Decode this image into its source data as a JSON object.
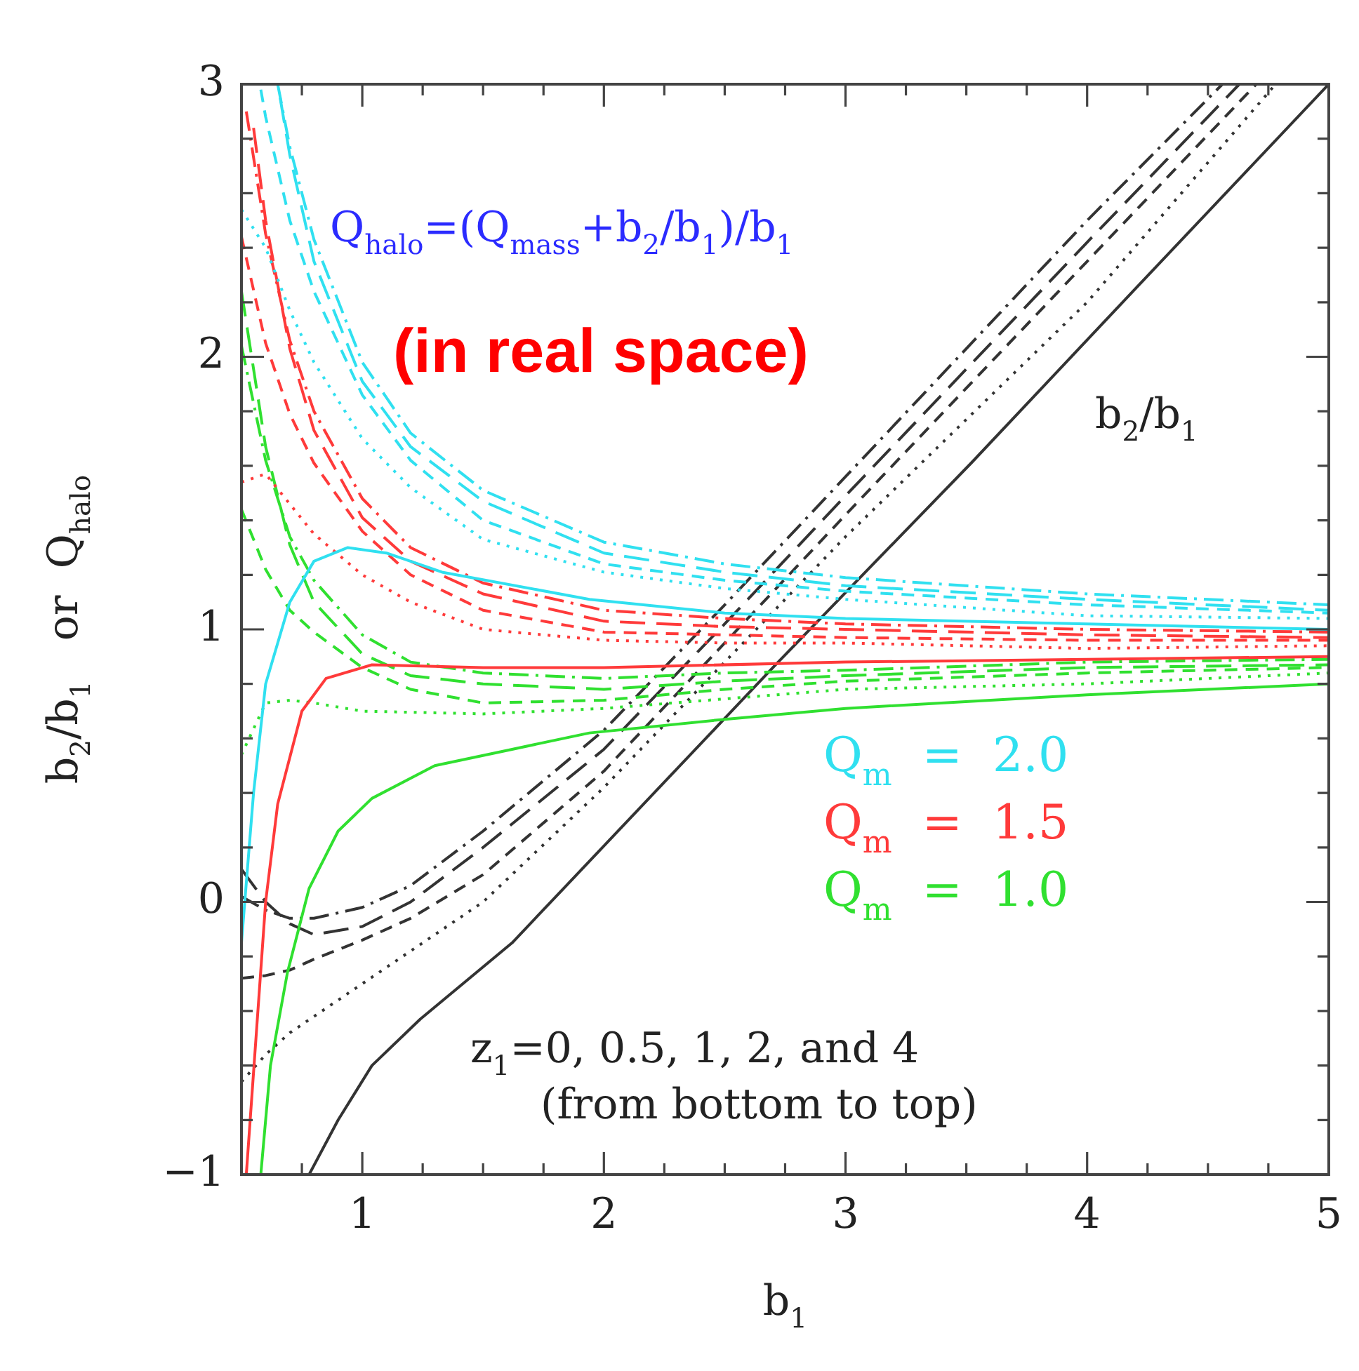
{
  "chart_data": {
    "type": "line",
    "xlabel": "b$_{1}$",
    "ylabel": "b$_{2}$/b$_{1}$   or  Q$_{halo}$",
    "xlim": [
      0.5,
      5
    ],
    "ylim": [
      -1,
      3
    ],
    "xticks": [
      {
        "value": 0.75,
        "label": null
      },
      1,
      {
        "value": 1.25,
        "label": null
      },
      {
        "value": 1.5,
        "label": null
      },
      {
        "value": 1.75,
        "label": null
      },
      2,
      {
        "value": 2.25,
        "label": null
      },
      {
        "value": 2.5,
        "label": null
      },
      {
        "value": 2.75,
        "label": null
      },
      3,
      {
        "value": 3.25,
        "label": null
      },
      {
        "value": 3.5,
        "label": null
      },
      {
        "value": 3.75,
        "label": null
      },
      4,
      {
        "value": 4.25,
        "label": null
      },
      {
        "value": 4.5,
        "label": null
      },
      {
        "value": 4.75,
        "label": null
      },
      5
    ],
    "yticks": [
      -1,
      {
        "value": -0.8,
        "label": null
      },
      {
        "value": -0.6,
        "label": null
      },
      {
        "value": -0.4,
        "label": null
      },
      {
        "value": -0.2,
        "label": null
      },
      0,
      {
        "value": 0.2,
        "label": null
      },
      {
        "value": 0.4,
        "label": null
      },
      {
        "value": 0.6,
        "label": null
      },
      {
        "value": 0.8,
        "label": null
      },
      1,
      {
        "value": 1.2,
        "label": null
      },
      {
        "value": 1.4,
        "label": null
      },
      {
        "value": 1.6,
        "label": null
      },
      {
        "value": 1.8,
        "label": null
      },
      2,
      {
        "value": 2.2,
        "label": null
      },
      {
        "value": 2.4,
        "label": null
      },
      {
        "value": 2.6,
        "label": null
      },
      {
        "value": 2.8,
        "label": null
      },
      3
    ],
    "legend": "right",
    "annotations": [
      "Q$_{halo}$=(Q$_{mass}$+b$_{2}$/b$_{1}$)/b$_{1}$",
      "(in real space)",
      "b$_{2}$/b$_{1}$",
      "z$_{1}$=0, 0.5, 1, 2, and 4",
      "(from bottom to top)"
    ],
    "series": [
      {
        "name": "Q$_{m}$ = 2.0",
        "color": "#30e0f0",
        "line_style": "solid",
        "x": [
          0.5,
          0.55,
          0.6,
          0.7,
          0.8,
          0.94,
          1.1,
          1.33,
          1.94,
          2.5,
          3,
          4,
          5
        ],
        "values": [
          -0.15,
          0.4,
          0.8,
          1.1,
          1.25,
          1.3,
          1.28,
          1.21,
          1.11,
          1.06,
          1.04,
          1.02,
          1.0
        ]
      },
      {
        "color": "#30e0f0",
        "line_style": "dotted",
        "x": [
          0.5,
          0.6,
          0.7,
          0.8,
          1,
          1.2,
          1.5,
          2,
          2.5,
          3,
          4,
          5
        ],
        "values": [
          2.54,
          2.4,
          2.17,
          1.98,
          1.7,
          1.52,
          1.33,
          1.21,
          1.15,
          1.11,
          1.05,
          1.04
        ]
      },
      {
        "color": "#30e0f0",
        "line_style": "dashed",
        "x": [
          0.58,
          0.6,
          0.7,
          0.8,
          1,
          1.2,
          1.5,
          2,
          2.5,
          3,
          4,
          5
        ],
        "values": [
          2.98,
          2.88,
          2.5,
          2.24,
          1.86,
          1.62,
          1.4,
          1.24,
          1.18,
          1.14,
          1.09,
          1.06
        ]
      },
      {
        "color": "#30e0f0",
        "line_style": "longdash",
        "x": [
          0.66,
          0.7,
          0.8,
          1,
          1.2,
          1.5,
          2,
          2.5,
          3,
          4,
          5
        ],
        "values": [
          2.95,
          2.74,
          2.35,
          1.91,
          1.67,
          1.47,
          1.28,
          1.21,
          1.16,
          1.11,
          1.07
        ]
      },
      {
        "color": "#30e0f0",
        "line_style": "dashdot",
        "x": [
          0.65,
          0.7,
          0.8,
          1,
          1.2,
          1.5,
          2,
          2.5,
          3,
          4,
          5
        ],
        "values": [
          3.0,
          2.77,
          2.43,
          1.98,
          1.72,
          1.51,
          1.32,
          1.24,
          1.19,
          1.13,
          1.09
        ]
      },
      {
        "name": "Q$_{m}$ = 1.5",
        "color": "#ff3a3a",
        "line_style": "solid",
        "x": [
          0.52,
          0.56,
          0.6,
          0.65,
          0.75,
          0.85,
          1.04,
          1.5,
          2,
          3,
          4,
          5
        ],
        "values": [
          -1,
          -0.5,
          0.0,
          0.36,
          0.7,
          0.82,
          0.87,
          0.86,
          0.86,
          0.88,
          0.89,
          0.9
        ]
      },
      {
        "color": "#ff3a3a",
        "line_style": "dotted",
        "x": [
          0.5,
          0.6,
          0.7,
          0.8,
          1,
          1.2,
          1.5,
          2,
          2.5,
          3,
          4,
          5
        ],
        "values": [
          1.54,
          1.57,
          1.46,
          1.35,
          1.2,
          1.1,
          1.0,
          0.96,
          0.95,
          0.95,
          0.93,
          0.94
        ]
      },
      {
        "color": "#ff3a3a",
        "line_style": "dashed",
        "x": [
          0.5,
          0.6,
          0.7,
          0.8,
          1,
          1.2,
          1.5,
          2,
          2.5,
          3,
          4,
          5
        ],
        "values": [
          2.44,
          2.05,
          1.79,
          1.61,
          1.36,
          1.2,
          1.07,
          0.99,
          0.98,
          0.97,
          0.96,
          0.96
        ]
      },
      {
        "color": "#ff3a3a",
        "line_style": "longdash",
        "x": [
          0.55,
          0.6,
          0.7,
          0.8,
          1,
          1.2,
          1.5,
          2,
          2.5,
          3,
          4,
          5
        ],
        "values": [
          2.84,
          2.5,
          2.03,
          1.73,
          1.41,
          1.25,
          1.13,
          1.03,
          1.01,
          1.0,
          0.98,
          0.97
        ]
      },
      {
        "color": "#ff3a3a",
        "line_style": "dashdot",
        "x": [
          0.52,
          0.6,
          0.7,
          0.8,
          1,
          1.2,
          1.5,
          2,
          2.5,
          3,
          4,
          5
        ],
        "values": [
          2.9,
          2.45,
          2.06,
          1.8,
          1.48,
          1.3,
          1.17,
          1.07,
          1.04,
          1.02,
          1.0,
          0.99
        ]
      },
      {
        "name": "Q$_{m}$ = 1.0",
        "color": "#30e030",
        "line_style": "solid",
        "x": [
          0.58,
          0.62,
          0.69,
          0.78,
          0.9,
          1.04,
          1.3,
          1.62,
          1.94,
          2.5,
          3,
          4,
          5
        ],
        "values": [
          -1,
          -0.6,
          -0.26,
          0.05,
          0.26,
          0.38,
          0.5,
          0.56,
          0.62,
          0.67,
          0.71,
          0.76,
          0.8
        ]
      },
      {
        "color": "#30e030",
        "line_style": "dotted",
        "x": [
          0.5,
          0.6,
          0.7,
          0.8,
          1,
          1.5,
          2,
          3,
          4,
          5
        ],
        "values": [
          0.54,
          0.73,
          0.74,
          0.73,
          0.7,
          0.69,
          0.71,
          0.78,
          0.8,
          0.84
        ]
      },
      {
        "color": "#30e030",
        "line_style": "dashed",
        "x": [
          0.5,
          0.6,
          0.7,
          0.8,
          1,
          1.2,
          1.5,
          2,
          2.5,
          3,
          4,
          5
        ],
        "values": [
          1.44,
          1.22,
          1.07,
          0.99,
          0.86,
          0.78,
          0.73,
          0.74,
          0.78,
          0.81,
          0.84,
          0.86
        ]
      },
      {
        "color": "#30e030",
        "line_style": "longdash",
        "x": [
          0.5,
          0.6,
          0.7,
          0.8,
          1,
          1.2,
          1.5,
          2,
          2.5,
          3,
          4,
          5
        ],
        "values": [
          2.24,
          1.67,
          1.31,
          1.1,
          0.91,
          0.83,
          0.8,
          0.78,
          0.81,
          0.83,
          0.86,
          0.87
        ]
      },
      {
        "color": "#30e030",
        "line_style": "dashdot",
        "x": [
          0.5,
          0.6,
          0.7,
          0.8,
          1,
          1.2,
          1.5,
          2,
          2.5,
          3,
          4,
          5
        ],
        "values": [
          2.04,
          1.62,
          1.34,
          1.18,
          0.98,
          0.88,
          0.84,
          0.82,
          0.84,
          0.85,
          0.88,
          0.89
        ]
      },
      {
        "color": "#333333",
        "line_style": "solid",
        "x": [
          0.78,
          0.9,
          1.04,
          1.24,
          1.62,
          2.24,
          2.71,
          3.52,
          4.2,
          5
        ],
        "values": [
          -1,
          -0.8,
          -0.6,
          -0.43,
          -0.15,
          0.43,
          0.87,
          1.61,
          2.25,
          3
        ]
      },
      {
        "color": "#333333",
        "line_style": "dotted",
        "x": [
          0.5,
          0.6,
          0.7,
          0.8,
          1,
          1.2,
          1.5,
          2,
          2.5,
          3,
          4,
          4.78
        ],
        "values": [
          -0.66,
          -0.56,
          -0.48,
          -0.42,
          -0.3,
          -0.18,
          0,
          0.42,
          0.88,
          1.34,
          2.2,
          3
        ]
      },
      {
        "color": "#333333",
        "line_style": "dashed",
        "x": [
          0.5,
          0.6,
          0.7,
          0.8,
          1,
          1.2,
          1.5,
          2,
          2.5,
          3,
          4,
          4.7
        ],
        "values": [
          -0.28,
          -0.27,
          -0.25,
          -0.21,
          -0.14,
          -0.06,
          0.1,
          0.48,
          0.95,
          1.42,
          2.35,
          3
        ]
      },
      {
        "color": "#333333",
        "line_style": "longdash",
        "x": [
          0.5,
          0.6,
          0.7,
          0.8,
          1,
          1.2,
          1.5,
          2,
          2.5,
          3,
          4,
          4.63
        ],
        "values": [
          0.12,
          0,
          -0.08,
          -0.12,
          -0.09,
          0,
          0.2,
          0.56,
          1.02,
          1.49,
          2.42,
          3
        ]
      },
      {
        "color": "#333333",
        "line_style": "dashdot",
        "x": [
          0.5,
          0.6,
          0.7,
          0.8,
          1,
          1.2,
          1.5,
          2,
          2.5,
          3,
          4,
          4.56
        ],
        "values": [
          0.02,
          -0.03,
          -0.06,
          -0.06,
          -0.02,
          0.06,
          0.26,
          0.63,
          1.09,
          1.56,
          2.5,
          3
        ]
      }
    ]
  }
}
